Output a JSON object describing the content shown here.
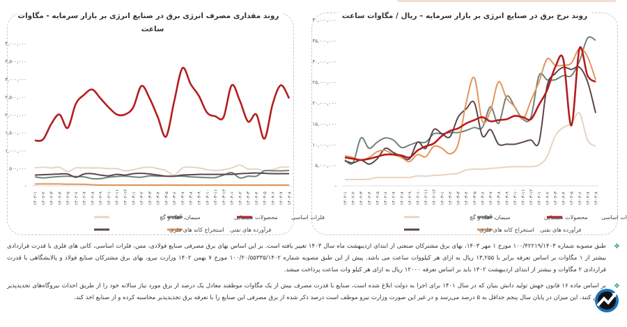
{
  "colors": {
    "basic_metals": "#b51c1c",
    "chemicals": "#6e827b",
    "cement": "#e5d4c2",
    "mining": "#5b4449",
    "oil": "#e2955a",
    "bullet": "#3aa676"
  },
  "legend": [
    "فلزات اساسی",
    "محصولات شیمیایی",
    "سیمان، آهک و گچ",
    "فرآورده های نفتی",
    "استخراج کانه های فلزی"
  ],
  "chart_data": [
    {
      "type": "line",
      "title": "روند مقداری مصرف انرژی برق در صنایع انرژی بر بازار سرمایه  -  مگاوات ساعت",
      "ylim": [
        0,
        4000000
      ],
      "yticks": [
        0,
        500000,
        1000000,
        1500000,
        2000000,
        2500000,
        3000000,
        3500000,
        4000000
      ],
      "ytick_labels": [
        "-",
        "۵۰۰,۰۰۰",
        "۱,۰۰۰,۰۰۰",
        "۱,۵۰۰,۰۰۰",
        "۲,۰۰۰,۰۰۰",
        "۲,۵۰۰,۰۰۰",
        "۳,۰۰۰,۰۰۰",
        "۳,۵۰۰,۰۰۰",
        "۴,۰۰۰,۰۰۰"
      ],
      "categories": [
        "۱۴۰۲-۱",
        "۱۴۰۲-۲",
        "۱۴۰۲-۳",
        "۱۴۰۲-۴",
        "۱۴۰۲-۵",
        "۱۴۰۲-۶",
        "۱۴۰۲-۷",
        "۱۴۰۲-۸",
        "۱۴۰۲-۹",
        "۱۴۰۲-۱۰",
        "۱۴۰۲-۱۱",
        "۱۴۰۲-۱۲",
        "۱۴۰۳-۱",
        "۱۴۰۳-۲",
        "۱۴۰۳-۳",
        "۱۴۰۳-۴",
        "۱۴۰۳-۵",
        "۱۴۰۳-۶",
        "۱۴۰۳-۷",
        "۱۴۰۳-۸",
        "۱۴۰۳-۹",
        "۱۴۰۳-۱۰",
        "۱۴۰۳-۱۱",
        "۱۴۰۳-۱۲",
        "۱۴۰۴-۱",
        "۱۴۰۴-۲",
        "۱۴۰۴-۳",
        "۱۴۰۴-۴",
        "۱۴۰۴-۵",
        "۱۴۰۴-۶",
        "۱۴۰۴-۷",
        "۱۴۰۴-۸"
      ],
      "grid": false,
      "legend_position": "bottom",
      "series": [
        {
          "name": "سیمان، آهک و گچ",
          "key": "cement",
          "values": [
            500000,
            520000,
            500000,
            520000,
            400000,
            500000,
            500000,
            500000,
            500000,
            480000,
            480000,
            420000,
            450000,
            500000,
            520000,
            480000,
            420000,
            300000,
            500000,
            520000,
            500000,
            450000,
            430000,
            450000,
            500000,
            580000,
            470000,
            470000,
            420000,
            450000,
            520000,
            520000
          ]
        },
        {
          "name": "محصولات شیمیایی",
          "key": "chemicals",
          "values": [
            250000,
            220000,
            240000,
            260000,
            270000,
            260000,
            250000,
            200000,
            200000,
            240000,
            260000,
            270000,
            250000,
            240000,
            280000,
            270000,
            270000,
            270000,
            270000,
            250000,
            240000,
            230000,
            230000,
            300000,
            370000,
            220000,
            270000,
            270000,
            420000,
            420000,
            420000,
            430000
          ]
        },
        {
          "name": "استخراج کانه های فلزی",
          "key": "mining",
          "values": [
            300000,
            310000,
            320000,
            330000,
            330000,
            240000,
            330000,
            340000,
            300000,
            280000,
            320000,
            300000,
            340000,
            350000,
            330000,
            300000,
            270000,
            270000,
            300000,
            310000,
            320000,
            320000,
            320000,
            320000,
            320000,
            340000,
            350000,
            360000,
            350000,
            340000,
            340000,
            340000
          ]
        },
        {
          "name": "فرآورده های نفتی",
          "key": "oil",
          "values": [
            50000,
            50000,
            50000,
            50000,
            45000,
            45000,
            40000,
            30000,
            20000,
            20000,
            20000,
            20000,
            20000,
            20000,
            20000,
            20000,
            20000,
            20000,
            20000,
            20000,
            20000,
            20000,
            20000,
            20000,
            20000,
            20000,
            20000,
            20000,
            20000,
            20000,
            20000,
            20000
          ]
        },
        {
          "name": "فلزات اساسی",
          "key": "basic_metals",
          "values": [
            1270000,
            1300000,
            1730000,
            2000000,
            1620000,
            2300000,
            2550000,
            2700000,
            2450000,
            2200000,
            2000000,
            2000000,
            2200000,
            2800000,
            2450000,
            1920000,
            1380000,
            2380000,
            3300000,
            2850000,
            2520000,
            2050000,
            1950000,
            1920000,
            2820000,
            2380000,
            1800000,
            2000000,
            1320000,
            2300000,
            2820000,
            2450000
          ]
        }
      ]
    },
    {
      "type": "line",
      "title": "روند نرخ برق در صنایع انرژی بر بازار سرمایه – ریال / مگاوات ساعت",
      "ylim": [
        0,
        40000000
      ],
      "yticks": [
        0,
        5000000,
        10000000,
        15000000,
        20000000,
        25000000,
        30000000,
        35000000,
        40000000
      ],
      "ytick_labels": [
        "-",
        "۵,۰۰۰,۰۰۰",
        "۱۰,۰۰۰,۰۰۰",
        "۱۵,۰۰۰,۰۰۰",
        "۲۰,۰۰۰,۰۰۰",
        "۲۵,۰۰۰,۰۰۰",
        "۳۰,۰۰۰,۰۰۰",
        "۳۵,۰۰۰,۰۰۰",
        "۴۰,۰۰۰,۰۰۰"
      ],
      "categories": [
        "۱۴۰۲-۱",
        "۱۴۰۲-۲",
        "۱۴۰۲-۳",
        "۱۴۰۲-۴",
        "۱۴۰۲-۵",
        "۱۴۰۲-۶",
        "۱۴۰۲-۷",
        "۱۴۰۲-۸",
        "۱۴۰۲-۹",
        "۱۴۰۲-۱۰",
        "۱۴۰۲-۱۱",
        "۱۴۰۲-۱۲",
        "۱۴۰۳-۱",
        "۱۴۰۳-۲",
        "۱۴۰۳-۳",
        "۱۴۰۳-۴",
        "۱۴۰۳-۵",
        "۱۴۰۳-۶",
        "۱۴۰۳-۷",
        "۱۴۰۳-۸",
        "۱۴۰۳-۹",
        "۱۴۰۳-۱۰",
        "۱۴۰۳-۱۱",
        "۱۴۰۳-۱۲",
        "۱۴۰۴-۱",
        "۱۴۰۴-۲",
        "۱۴۰۴-۳",
        "۱۴۰۴-۴",
        "۱۴۰۴-۵",
        "۱۴۰۴-۶",
        "۱۴۰۴-۷",
        "۱۴۰۴-۸"
      ],
      "grid": false,
      "legend_position": "bottom",
      "series": [
        {
          "name": "سیمان، آهک و گچ",
          "key": "cement",
          "values": [
            1500000,
            1500000,
            1500000,
            1600000,
            2000000,
            2000000,
            2000000,
            2000000,
            2000000,
            2400000,
            2300000,
            2500000,
            2600000,
            2800000,
            3000000,
            3800000,
            4000000,
            4000000,
            4200000,
            4300000,
            4500000,
            4600000,
            4600000,
            4600000,
            5000000,
            7000000,
            12000000,
            14000000,
            15000000,
            17500000,
            11000000,
            9500000
          ]
        },
        {
          "name": "محصولات شیمیایی",
          "key": "chemicals",
          "values": [
            6200000,
            5500000,
            11500000,
            9000000,
            10500000,
            11500000,
            11000000,
            9200000,
            9800000,
            10500000,
            10500000,
            12500000,
            12500000,
            12800000,
            12800000,
            13300000,
            14000000,
            14000000,
            19000000,
            15000000,
            21500000,
            19000000,
            16000000,
            16500000,
            26500000,
            25500000,
            25500000,
            26500000,
            26500000,
            30000000,
            35500000,
            35000000
          ]
        },
        {
          "name": "استخراج کانه های فلزی",
          "key": "mining",
          "values": [
            6000000,
            5500000,
            6200000,
            5200000,
            6500000,
            9000000,
            8000000,
            7000000,
            6500000,
            10500000,
            9000000,
            13500000,
            12500000,
            11800000,
            16500000,
            18500000,
            20000000,
            12000000,
            13500000,
            10000000,
            10000000,
            10000000,
            10500000,
            11000000,
            10500000,
            24000000,
            27000000,
            28500000,
            28000000,
            28500000,
            25000000,
            17500000
          ]
        },
        {
          "name": "فرآورده های نفتی",
          "key": "oil",
          "values": [
            7200000,
            6800000,
            6200000,
            6800000,
            8200000,
            8500000,
            7500000,
            6800000,
            5800000,
            7500000,
            7000000,
            9500000,
            9000000,
            7700000,
            10000000,
            20000000,
            26000000,
            15500000,
            18000000,
            25000000,
            21000000,
            19000000,
            16000000,
            20500000,
            25000000,
            30500000,
            29000000,
            29000000,
            29500000,
            33000000,
            31000000,
            25500000
          ]
        },
        {
          "name": "فلزات اساسی",
          "key": "basic_metals",
          "values": [
            6800000,
            6500000,
            6200000,
            6500000,
            7000000,
            7500000,
            7500000,
            7300000,
            6800000,
            8500000,
            9500000,
            10200000,
            12000000,
            13200000,
            13800000,
            15000000,
            15800000,
            16500000,
            15500000,
            15800000,
            16000000,
            16800000,
            16500000,
            16000000,
            19500000,
            23000000,
            28500000,
            30500000,
            14500000,
            33000000,
            26500000,
            25000000
          ]
        }
      ]
    }
  ],
  "notes": [
    "طبق مصوبه شماره ۱۰۰/۴۲۲۱۹/۱۴۰۳ مورخ ۱ مهر ۱۴۰۳، بهای برق مشترکان صنعتی از ابتدای اردیبهشت ماه سال ۱۴۰۳ تغییر یافته است. بر این اساس بهای برق مصرفی صنایع فولادی، مس، فلزات اساسی، کانی های فلزی با قدرت قراردادی بیشتر از ۱ مگاوات بر اساس تعرفه برابر با ۱۳,۲۵۵ ریال به ازای هر کیلووات ساعت می باشد. پیش از این طبق مصوبه شماره ۱۰۰/۲۰/۵۵۳۳۵/۱۴۰۲ مورخ ۷ بهمن ۱۴۰۲ وزارت نیرو، بهای برق مشترکان صنایع فولاد و پالایشگاهی با قدرت قراردادی ۲ مگاوات و بیشتر از ابتدای اردیبهشت ۱۴۰۲ باید بر اساس تعرفه ۱۲۰۰۰ ریال به ازای هر کیلو وات ساعت پرداخت میشد.",
    "بر اساس ماده ۱۶ قانون جهش تولید دانش بنیان که در سال ۱۴۰۱ برای اجرا به دولت ابلاغ شده است، صنایع با قدرت مصرف بیش از یک مگاوات موظفند معادل یک درصد از برق مورد نیاز سالانه خود را از طریق احداث نیروگاه‌های تجدیدپذیر تامین کنند. این میزان در پایان سال پنجم حداقل به ۵ درصد می‌رسد و در غیر این صورت وزارت نیرو موظف است درصد ذکر شده از برق مصرفی این صنایع را با تعرفه برق تجدیدپذیر محاسبه کرده و از صنایع اخذ کند."
  ],
  "bullet_icon": "diamond-bullet-icon",
  "logo_icon": "trend-arrow-logo"
}
